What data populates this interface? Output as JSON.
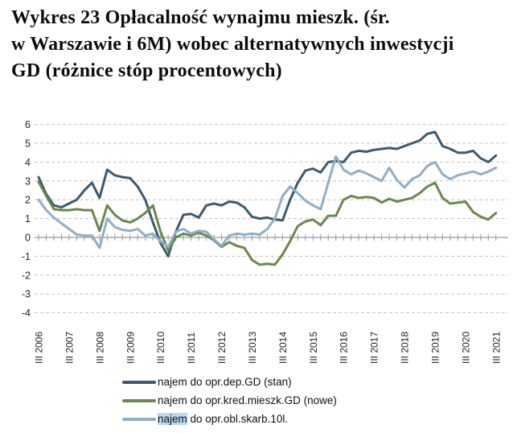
{
  "title": {
    "line1": "Wykres 23 Opłacalność wynajmu mieszk. (śr.",
    "line2": "w Warszawie i 6M) wobec alternatywnych inwestycji",
    "line3": "GD (różnice stóp procentowych)"
  },
  "legend": {
    "items": [
      {
        "label": "najem do opr.dep.GD (stan)",
        "color": "#3d5a70"
      },
      {
        "label": "najem do opr.kred.mieszk.GD (nowe)",
        "color": "#6c874c"
      },
      {
        "label": "najem do opr.obl.skarb.10l.",
        "label_highlight": "najem",
        "label_rest": " do opr.obl.skarb.10l.",
        "highlight_color": "#bcd7f0",
        "color": "#8faec9"
      }
    ]
  },
  "chart_data": {
    "type": "line",
    "x_start": "III 2006",
    "x_end": "III 2021",
    "x_frequency": "quarterly",
    "x_tick_labels": [
      "III 2006",
      "III 2007",
      "III 2008",
      "III 2009",
      "III 2010",
      "III 2011",
      "III 2012",
      "III 2013",
      "III 2014",
      "III 2015",
      "III 2016",
      "III 2017",
      "III 2018",
      "III 2019",
      "III 2020",
      "III 2021"
    ],
    "x_label_every": 4,
    "ylim": [
      -4,
      6
    ],
    "y_ticks": [
      6,
      5,
      4,
      3,
      2,
      1,
      0,
      -1,
      -2,
      -3,
      -4
    ],
    "grid": "horizontal-dashed",
    "legend_position": "bottom",
    "series": [
      {
        "name": "najem do opr.dep.GD (stan)",
        "color": "#3d5a70",
        "values": [
          3.2,
          2.3,
          1.7,
          1.6,
          1.8,
          2.0,
          2.5,
          2.9,
          2.1,
          3.6,
          3.3,
          3.2,
          3.15,
          2.7,
          2.0,
          0.8,
          -0.3,
          -1.0,
          0.3,
          1.2,
          1.25,
          1.05,
          1.7,
          1.8,
          1.7,
          1.9,
          1.85,
          1.6,
          1.1,
          1.0,
          1.05,
          0.95,
          0.9,
          2.0,
          2.9,
          3.55,
          3.65,
          3.45,
          4.0,
          4.05,
          4.0,
          4.5,
          4.6,
          4.55,
          4.65,
          4.7,
          4.75,
          4.7,
          4.85,
          5.0,
          5.15,
          5.5,
          5.6,
          4.85,
          4.7,
          4.5,
          4.5,
          4.6,
          4.2,
          4.0,
          4.35
        ]
      },
      {
        "name": "najem do opr.kred.mieszk.GD (nowe)",
        "color": "#6c874c",
        "values": [
          2.95,
          2.2,
          1.5,
          1.45,
          1.45,
          1.5,
          1.45,
          1.45,
          0.35,
          1.7,
          1.2,
          0.9,
          0.8,
          1.0,
          1.3,
          1.7,
          0.3,
          -0.7,
          0.0,
          0.2,
          0.1,
          0.25,
          0.1,
          -0.15,
          -0.5,
          -0.25,
          -0.45,
          -0.55,
          -1.2,
          -1.45,
          -1.4,
          -1.45,
          -0.9,
          -0.2,
          0.6,
          0.85,
          0.95,
          0.65,
          1.15,
          1.15,
          2.0,
          2.2,
          2.1,
          2.15,
          2.1,
          1.85,
          2.05,
          1.9,
          2.0,
          2.1,
          2.35,
          2.7,
          2.9,
          2.1,
          1.8,
          1.85,
          1.9,
          1.35,
          1.1,
          0.95,
          1.3
        ]
      },
      {
        "name": "najem do opr.obl.skarb.10l.",
        "color": "#8faec9",
        "values": [
          2.0,
          1.45,
          1.05,
          0.75,
          0.45,
          0.15,
          0.1,
          0.1,
          -0.55,
          1.0,
          0.55,
          0.4,
          0.35,
          0.45,
          0.1,
          0.2,
          -0.2,
          -0.5,
          0.3,
          0.45,
          0.2,
          0.35,
          0.3,
          -0.1,
          -0.45,
          0.1,
          0.2,
          0.15,
          0.2,
          0.15,
          0.45,
          1.0,
          2.2,
          2.7,
          2.35,
          1.95,
          1.7,
          1.5,
          2.9,
          4.3,
          3.6,
          3.35,
          3.55,
          3.4,
          3.2,
          3.0,
          3.7,
          3.05,
          2.65,
          3.1,
          3.3,
          3.8,
          4.0,
          3.35,
          3.1,
          3.3,
          3.4,
          3.5,
          3.35,
          3.5,
          3.7
        ]
      }
    ]
  }
}
